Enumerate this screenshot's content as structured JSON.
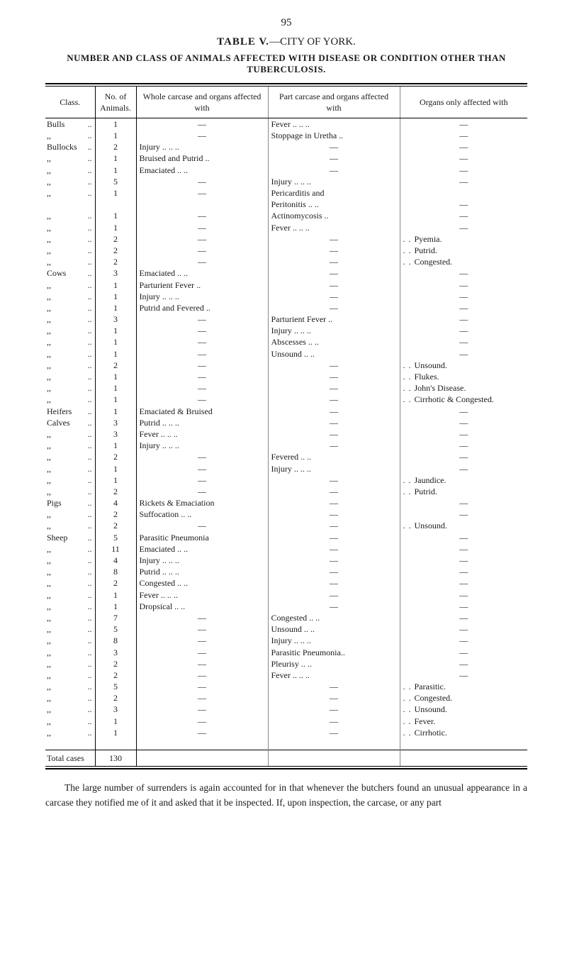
{
  "page_number": "95",
  "title": {
    "label": "TABLE V.",
    "suffix": "—CITY OF YORK."
  },
  "subtitle": "NUMBER AND CLASS OF ANIMALS AFFECTED WITH DISEASE OR CONDITION OTHER THAN TUBERCULOSIS.",
  "columns": [
    "Class.",
    "No. of Animals.",
    "Whole carcase and organs affected with",
    "Part carcase and organs affected with",
    "Organs only affected with"
  ],
  "rows": [
    {
      "class": "Bulls",
      "dots": "..",
      "n": "1",
      "whole": "—",
      "part": "Fever ..  ..  ..",
      "organs": "—"
    },
    {
      "class": ",,",
      "dots": "..",
      "n": "1",
      "whole": "—",
      "part": "Stoppage in Uretha ..",
      "organs": "—"
    },
    {
      "class": "Bullocks",
      "dots": "..",
      "n": "2",
      "whole": "Injury ..  ..  ..",
      "part": "—",
      "organs": "—"
    },
    {
      "class": ",,",
      "dots": "..",
      "n": "1",
      "whole": "Bruised and Putrid ..",
      "part": "—",
      "organs": "—"
    },
    {
      "class": ",,",
      "dots": "..",
      "n": "1",
      "whole": "Emaciated  ..  ..",
      "part": "—",
      "organs": "—"
    },
    {
      "class": ",,",
      "dots": "..",
      "n": "5",
      "whole": "—",
      "part": "Injury ..  ..  ..",
      "organs": "—"
    },
    {
      "class": ",,",
      "dots": "..",
      "n": "1",
      "whole": "—",
      "part": "Pericarditis and",
      "organs": ""
    },
    {
      "class": "",
      "dots": "",
      "n": "",
      "whole": "",
      "part": "  Peritonitis ..  ..",
      "organs": "—"
    },
    {
      "class": ",,",
      "dots": "..",
      "n": "1",
      "whole": "—",
      "part": "Actinomycosis  ..",
      "organs": "—"
    },
    {
      "class": ",,",
      "dots": "..",
      "n": "1",
      "whole": "—",
      "part": "Fever ..  ..  ..",
      "organs": "—"
    },
    {
      "class": ",,",
      "dots": "..",
      "n": "2",
      "whole": "—",
      "part": "—",
      "organs": "Pyemia."
    },
    {
      "class": ",,",
      "dots": "..",
      "n": "2",
      "whole": "—",
      "part": "—",
      "organs": "Putrid."
    },
    {
      "class": ",,",
      "dots": "..",
      "n": "2",
      "whole": "—",
      "part": "—",
      "organs": "Congested."
    },
    {
      "class": "Cows",
      "dots": "..",
      "n": "3",
      "whole": "Emaciated  ..  ..",
      "part": "—",
      "organs": "—"
    },
    {
      "class": ",,",
      "dots": "..",
      "n": "1",
      "whole": "Parturient Fever  ..",
      "part": "—",
      "organs": "—"
    },
    {
      "class": ",,",
      "dots": "..",
      "n": "1",
      "whole": "Injury ..  ..  ..",
      "part": "—",
      "organs": "—"
    },
    {
      "class": ",,",
      "dots": "..",
      "n": "1",
      "whole": "Putrid and Fevered ..",
      "part": "—",
      "organs": "—"
    },
    {
      "class": ",,",
      "dots": "..",
      "n": "3",
      "whole": "—",
      "part": "Parturient Fever  ..",
      "organs": "—"
    },
    {
      "class": ",,",
      "dots": "..",
      "n": "1",
      "whole": "—",
      "part": "Injury ..  ..  ..",
      "organs": "—"
    },
    {
      "class": ",,",
      "dots": "..",
      "n": "1",
      "whole": "—",
      "part": "Abscesses  ..  ..",
      "organs": "—"
    },
    {
      "class": ",,",
      "dots": "..",
      "n": "1",
      "whole": "—",
      "part": "Unsound  ..  ..",
      "organs": "—"
    },
    {
      "class": ",,",
      "dots": "..",
      "n": "2",
      "whole": "—",
      "part": "—",
      "organs": "Unsound."
    },
    {
      "class": ",,",
      "dots": "..",
      "n": "1",
      "whole": "—",
      "part": "—",
      "organs": "Flukes."
    },
    {
      "class": ",,",
      "dots": "..",
      "n": "1",
      "whole": "—",
      "part": "—",
      "organs": "John's Disease."
    },
    {
      "class": ",,",
      "dots": "..",
      "n": "1",
      "whole": "—",
      "part": "—",
      "organs": "Cirrhotic & Congested."
    },
    {
      "class": "Heifers",
      "dots": "..",
      "n": "1",
      "whole": "Emaciated & Bruised",
      "part": "—",
      "organs": "—"
    },
    {
      "class": "Calves",
      "dots": "..",
      "n": "3",
      "whole": "Putrid ..  ..  ..",
      "part": "—",
      "organs": "—"
    },
    {
      "class": ",,",
      "dots": "..",
      "n": "3",
      "whole": "Fever ..  ..  ..",
      "part": "—",
      "organs": "—"
    },
    {
      "class": ",,",
      "dots": "..",
      "n": "1",
      "whole": "Injury ..  ..  ..",
      "part": "—",
      "organs": "—"
    },
    {
      "class": ",,",
      "dots": "..",
      "n": "2",
      "whole": "—",
      "part": "Fevered  ..  ..",
      "organs": "—"
    },
    {
      "class": ",,",
      "dots": "..",
      "n": "1",
      "whole": "—",
      "part": "Injury ..  ..  ..",
      "organs": "—"
    },
    {
      "class": ",,",
      "dots": "..",
      "n": "1",
      "whole": "—",
      "part": "—",
      "organs": "Jaundice."
    },
    {
      "class": ",,",
      "dots": "..",
      "n": "2",
      "whole": "—",
      "part": "—",
      "organs": "Putrid."
    },
    {
      "class": "Pigs",
      "dots": "..",
      "n": "4",
      "whole": "Rickets & Emaciation",
      "part": "—",
      "organs": "—"
    },
    {
      "class": ",,",
      "dots": "..",
      "n": "2",
      "whole": "Suffocation  ..  ..",
      "part": "—",
      "organs": "—"
    },
    {
      "class": ",,",
      "dots": "..",
      "n": "2",
      "whole": "—",
      "part": "—",
      "organs": "Unsound."
    },
    {
      "class": "Sheep",
      "dots": "..",
      "n": "5",
      "whole": "Parasitic Pneumonia",
      "part": "—",
      "organs": "—"
    },
    {
      "class": ",,",
      "dots": "..",
      "n": "11",
      "whole": "Emaciated  ..  ..",
      "part": "—",
      "organs": "—"
    },
    {
      "class": ",,",
      "dots": "..",
      "n": "4",
      "whole": "Injury ..  ..  ..",
      "part": "—",
      "organs": "—"
    },
    {
      "class": ",,",
      "dots": "..",
      "n": "8",
      "whole": "Putrid ..  ..  ..",
      "part": "—",
      "organs": "—"
    },
    {
      "class": ",,",
      "dots": "..",
      "n": "2",
      "whole": "Congested  ..  ..",
      "part": "—",
      "organs": "—"
    },
    {
      "class": ",,",
      "dots": "..",
      "n": "1",
      "whole": "Fever ..  ..  ..",
      "part": "—",
      "organs": "—"
    },
    {
      "class": ",,",
      "dots": "..",
      "n": "1",
      "whole": "Dropsical  ..  ..",
      "part": "—",
      "organs": "—"
    },
    {
      "class": ",,",
      "dots": "..",
      "n": "7",
      "whole": "—",
      "part": "Congested  ..  ..",
      "organs": "—"
    },
    {
      "class": ",,",
      "dots": "..",
      "n": "5",
      "whole": "—",
      "part": "Unsound  ..  ..",
      "organs": "—"
    },
    {
      "class": ",,",
      "dots": "..",
      "n": "8",
      "whole": "—",
      "part": "Injury ..  ..  ..",
      "organs": "—"
    },
    {
      "class": ",,",
      "dots": "..",
      "n": "3",
      "whole": "—",
      "part": "Parasitic Pneumonia..",
      "organs": "—"
    },
    {
      "class": ",,",
      "dots": "..",
      "n": "2",
      "whole": "—",
      "part": "Pleurisy  ..  ..",
      "organs": "—"
    },
    {
      "class": ",,",
      "dots": "..",
      "n": "2",
      "whole": "—",
      "part": "Fever ..  ..  ..",
      "organs": "—"
    },
    {
      "class": ",,",
      "dots": "..",
      "n": "5",
      "whole": "—",
      "part": "—",
      "organs": "Parasitic."
    },
    {
      "class": ",,",
      "dots": "..",
      "n": "2",
      "whole": "—",
      "part": "—",
      "organs": "Congested."
    },
    {
      "class": ",,",
      "dots": "..",
      "n": "3",
      "whole": "—",
      "part": "—",
      "organs": "Unsound."
    },
    {
      "class": ",,",
      "dots": "..",
      "n": "1",
      "whole": "—",
      "part": "—",
      "organs": "Fever."
    },
    {
      "class": ",,",
      "dots": "..",
      "n": "1",
      "whole": "—",
      "part": "—",
      "organs": "Cirrhotic."
    }
  ],
  "total_row": {
    "class": "Total cases",
    "n": "130",
    "whole": "",
    "part": "",
    "organs": ""
  },
  "footnote": "The large number of surrenders is again accounted for in that whenever the butchers found an unusual appearance in a carcase they notified me of it and asked that it be inspected.   If, upon inspection, the carcase, or any part"
}
